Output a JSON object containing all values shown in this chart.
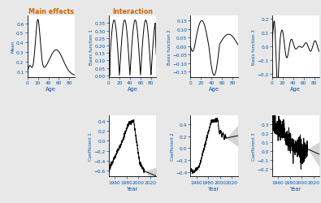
{
  "title_main": "Main effects",
  "title_interaction": "Interaction",
  "title_color": "#CC6600",
  "bg_color": "#e8e8e8",
  "panel_bg": "#ffffff",
  "ylabel_mean": "Mean",
  "ylabel_bf1": "Basis function 1",
  "ylabel_bf2": "Basis function 2",
  "ylabel_bf3": "Basis function 3",
  "ylabel_c1": "Coefficient 1",
  "ylabel_c2": "Coefficient 2",
  "ylabel_c3": "Coefficient 3",
  "xlabel_age": "Age",
  "xlabel_year": "Year",
  "line_color": "#000000",
  "ci_color": "#d0d0d0",
  "axis_label_color": "#0055AA",
  "title_font_color": "#CC6600"
}
